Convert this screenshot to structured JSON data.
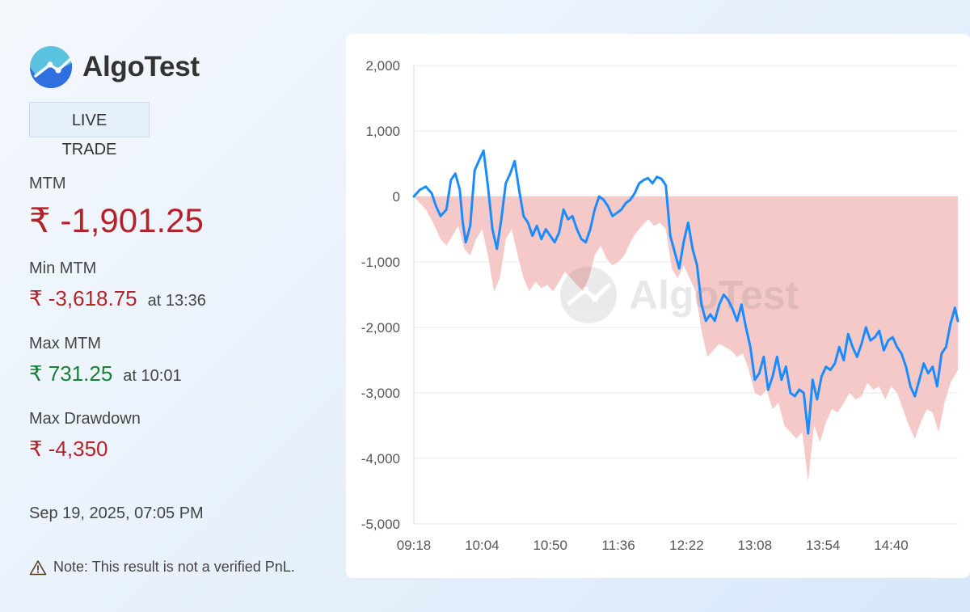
{
  "brand": {
    "name": "AlgoTest"
  },
  "badge": {
    "live": "LIVE",
    "trade": "TRADE"
  },
  "stats": {
    "mtm_label": "MTM",
    "mtm_value": "₹ -1,901.25",
    "min_label": "Min MTM",
    "min_value": "₹ -3,618.75",
    "min_time": "at 13:36",
    "max_label": "Max MTM",
    "max_value": "₹ 731.25",
    "max_time": "at 10:01",
    "dd_label": "Max Drawdown",
    "dd_value": "₹ -4,350"
  },
  "timestamp": "Sep 19, 2025, 07:05 PM",
  "note": "Note: This result is not a verified PnL.",
  "watermark": "AlgoTest",
  "colors": {
    "negative": "#b5232a",
    "positive": "#1a7f37",
    "line": "#1a8cff",
    "drawdown_fill": "#f5bfbf",
    "logo_light": "#5bc3e0",
    "logo_dark": "#2f6fe0"
  },
  "chart_data": {
    "type": "area",
    "x_ticks": [
      "09:18",
      "10:04",
      "10:50",
      "11:36",
      "12:22",
      "13:08",
      "13:54",
      "14:40"
    ],
    "y_ticks": [
      "2,000",
      "1,000",
      "0",
      "-1,000",
      "-2,000",
      "-3,000",
      "-4,000",
      "-5,000"
    ],
    "ylim": [
      -5000,
      2000
    ],
    "x_range": [
      "09:18",
      "15:25"
    ],
    "grid": true,
    "series": [
      {
        "label": "MTM",
        "points": [
          [
            0,
            0
          ],
          [
            4,
            100
          ],
          [
            8,
            150
          ],
          [
            12,
            50
          ],
          [
            15,
            -150
          ],
          [
            18,
            -300
          ],
          [
            22,
            -200
          ],
          [
            25,
            250
          ],
          [
            28,
            350
          ],
          [
            31,
            100
          ],
          [
            33,
            -400
          ],
          [
            35,
            -700
          ],
          [
            38,
            -450
          ],
          [
            41,
            400
          ],
          [
            44,
            550
          ],
          [
            47,
            700
          ],
          [
            50,
            150
          ],
          [
            53,
            -500
          ],
          [
            56,
            -800
          ],
          [
            59,
            -350
          ],
          [
            62,
            200
          ],
          [
            65,
            350
          ],
          [
            68,
            540
          ],
          [
            71,
            100
          ],
          [
            74,
            -300
          ],
          [
            77,
            -400
          ],
          [
            80,
            -600
          ],
          [
            83,
            -450
          ],
          [
            86,
            -650
          ],
          [
            89,
            -500
          ],
          [
            92,
            -600
          ],
          [
            95,
            -700
          ],
          [
            98,
            -550
          ],
          [
            101,
            -200
          ],
          [
            104,
            -350
          ],
          [
            107,
            -300
          ],
          [
            110,
            -500
          ],
          [
            113,
            -650
          ],
          [
            116,
            -700
          ],
          [
            119,
            -500
          ],
          [
            122,
            -200
          ],
          [
            125,
            0
          ],
          [
            128,
            -50
          ],
          [
            131,
            -150
          ],
          [
            134,
            -300
          ],
          [
            137,
            -250
          ],
          [
            140,
            -200
          ],
          [
            143,
            -100
          ],
          [
            146,
            -50
          ],
          [
            149,
            50
          ],
          [
            152,
            200
          ],
          [
            155,
            250
          ],
          [
            158,
            280
          ],
          [
            161,
            200
          ],
          [
            164,
            300
          ],
          [
            167,
            270
          ],
          [
            170,
            170
          ],
          [
            173,
            -600
          ],
          [
            176,
            -850
          ],
          [
            179,
            -1100
          ],
          [
            182,
            -700
          ],
          [
            185,
            -400
          ],
          [
            188,
            -800
          ],
          [
            191,
            -1050
          ],
          [
            194,
            -1650
          ],
          [
            197,
            -1900
          ],
          [
            200,
            -1800
          ],
          [
            203,
            -1900
          ],
          [
            206,
            -1650
          ],
          [
            209,
            -1500
          ],
          [
            212,
            -1580
          ],
          [
            215,
            -1720
          ],
          [
            218,
            -1900
          ],
          [
            221,
            -1650
          ],
          [
            224,
            -2000
          ],
          [
            227,
            -2300
          ],
          [
            230,
            -2800
          ],
          [
            233,
            -2700
          ],
          [
            236,
            -2450
          ],
          [
            239,
            -2950
          ],
          [
            242,
            -2750
          ],
          [
            245,
            -2450
          ],
          [
            248,
            -2800
          ],
          [
            251,
            -2600
          ],
          [
            254,
            -3000
          ],
          [
            257,
            -3050
          ],
          [
            260,
            -2950
          ],
          [
            263,
            -3000
          ],
          [
            266,
            -3618.75
          ],
          [
            269,
            -2800
          ],
          [
            272,
            -3100
          ],
          [
            275,
            -2750
          ],
          [
            278,
            -2600
          ],
          [
            281,
            -2650
          ],
          [
            284,
            -2550
          ],
          [
            287,
            -2300
          ],
          [
            290,
            -2500
          ],
          [
            293,
            -2100
          ],
          [
            296,
            -2300
          ],
          [
            299,
            -2450
          ],
          [
            302,
            -2250
          ],
          [
            305,
            -2000
          ],
          [
            308,
            -2200
          ],
          [
            311,
            -2150
          ],
          [
            314,
            -2050
          ],
          [
            317,
            -2350
          ],
          [
            320,
            -2200
          ],
          [
            323,
            -2150
          ],
          [
            326,
            -2300
          ],
          [
            329,
            -2400
          ],
          [
            332,
            -2600
          ],
          [
            335,
            -2900
          ],
          [
            338,
            -3050
          ],
          [
            341,
            -2800
          ],
          [
            344,
            -2550
          ],
          [
            347,
            -2700
          ],
          [
            350,
            -2600
          ],
          [
            353,
            -2900
          ],
          [
            356,
            -2400
          ],
          [
            359,
            -2300
          ],
          [
            362,
            -1950
          ],
          [
            365,
            -1700
          ],
          [
            367,
            -1901.25
          ]
        ]
      }
    ],
    "drawdown_min": [
      [
        0,
        0
      ],
      [
        8,
        -200
      ],
      [
        13,
        -400
      ],
      [
        18,
        -650
      ],
      [
        22,
        -750
      ],
      [
        26,
        -600
      ],
      [
        30,
        -450
      ],
      [
        34,
        -800
      ],
      [
        38,
        -900
      ],
      [
        42,
        -650
      ],
      [
        46,
        -500
      ],
      [
        50,
        -900
      ],
      [
        54,
        -1450
      ],
      [
        58,
        -1250
      ],
      [
        62,
        -650
      ],
      [
        66,
        -500
      ],
      [
        70,
        -900
      ],
      [
        74,
        -1250
      ],
      [
        78,
        -1450
      ],
      [
        82,
        -1300
      ],
      [
        86,
        -1400
      ],
      [
        90,
        -1350
      ],
      [
        94,
        -1450
      ],
      [
        98,
        -1300
      ],
      [
        102,
        -1150
      ],
      [
        106,
        -1250
      ],
      [
        110,
        -1350
      ],
      [
        114,
        -1450
      ],
      [
        118,
        -1250
      ],
      [
        122,
        -900
      ],
      [
        126,
        -750
      ],
      [
        130,
        -950
      ],
      [
        134,
        -1050
      ],
      [
        138,
        -1000
      ],
      [
        142,
        -900
      ],
      [
        146,
        -700
      ],
      [
        150,
        -550
      ],
      [
        154,
        -450
      ],
      [
        158,
        -350
      ],
      [
        162,
        -450
      ],
      [
        166,
        -400
      ],
      [
        170,
        -500
      ],
      [
        174,
        -1100
      ],
      [
        178,
        -1250
      ],
      [
        182,
        -1050
      ],
      [
        186,
        -1250
      ],
      [
        190,
        -1450
      ],
      [
        194,
        -2050
      ],
      [
        198,
        -2450
      ],
      [
        202,
        -2350
      ],
      [
        206,
        -2250
      ],
      [
        210,
        -2300
      ],
      [
        214,
        -2350
      ],
      [
        218,
        -2450
      ],
      [
        222,
        -2400
      ],
      [
        226,
        -2650
      ],
      [
        230,
        -3000
      ],
      [
        234,
        -3050
      ],
      [
        238,
        -2950
      ],
      [
        242,
        -3250
      ],
      [
        246,
        -3150
      ],
      [
        250,
        -3500
      ],
      [
        254,
        -3600
      ],
      [
        258,
        -3700
      ],
      [
        262,
        -3600
      ],
      [
        266,
        -4350
      ],
      [
        270,
        -3500
      ],
      [
        274,
        -3750
      ],
      [
        278,
        -3450
      ],
      [
        282,
        -3250
      ],
      [
        286,
        -3300
      ],
      [
        290,
        -3150
      ],
      [
        294,
        -3000
      ],
      [
        298,
        -3100
      ],
      [
        302,
        -3050
      ],
      [
        306,
        -2850
      ],
      [
        310,
        -2950
      ],
      [
        314,
        -2900
      ],
      [
        318,
        -3100
      ],
      [
        322,
        -2900
      ],
      [
        326,
        -3000
      ],
      [
        330,
        -3250
      ],
      [
        334,
        -3500
      ],
      [
        338,
        -3700
      ],
      [
        342,
        -3450
      ],
      [
        346,
        -3250
      ],
      [
        350,
        -3300
      ],
      [
        354,
        -3600
      ],
      [
        358,
        -3150
      ],
      [
        362,
        -2850
      ],
      [
        367,
        -2650
      ]
    ]
  }
}
